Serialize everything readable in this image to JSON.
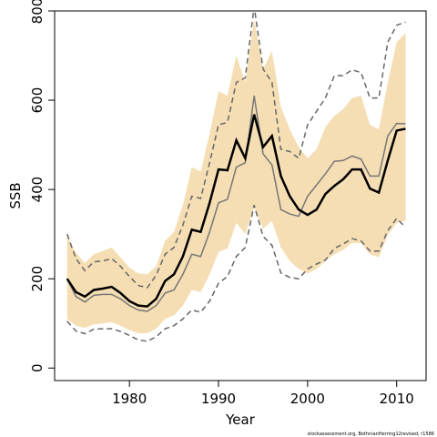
{
  "chart_data": {
    "type": "line",
    "xlabel": "Year",
    "ylabel": "SSB",
    "footnote": "stockassessment.org, BothnianHerring12revised, r1586",
    "x": [
      1973,
      1974,
      1975,
      1976,
      1977,
      1978,
      1979,
      1980,
      1981,
      1982,
      1983,
      1984,
      1985,
      1986,
      1987,
      1988,
      1989,
      1990,
      1991,
      1992,
      1993,
      1994,
      1995,
      1996,
      1997,
      1998,
      1999,
      2000,
      2001,
      2002,
      2003,
      2004,
      2005,
      2006,
      2007,
      2008,
      2009,
      2010,
      2011
    ],
    "band": {
      "color": "#f5deb3",
      "upper": [
        295,
        258,
        235,
        255,
        262,
        270,
        248,
        225,
        212,
        210,
        228,
        285,
        305,
        365,
        450,
        440,
        525,
        620,
        610,
        700,
        640,
        780,
        670,
        710,
        585,
        535,
        495,
        470,
        490,
        540,
        565,
        580,
        605,
        610,
        545,
        535,
        640,
        730,
        750
      ],
      "lower": [
        110,
        95,
        90,
        98,
        100,
        103,
        95,
        85,
        78,
        78,
        88,
        110,
        118,
        140,
        175,
        170,
        210,
        260,
        268,
        325,
        300,
        360,
        312,
        330,
        270,
        240,
        222,
        212,
        222,
        240,
        255,
        265,
        280,
        280,
        255,
        248,
        298,
        325,
        330
      ]
    },
    "series": [
      {
        "color": "#000000",
        "width": 2.5,
        "dashed": false,
        "values": [
          200,
          170,
          160,
          175,
          178,
          182,
          168,
          150,
          140,
          138,
          155,
          195,
          210,
          250,
          310,
          305,
          370,
          445,
          443,
          510,
          470,
          568,
          495,
          520,
          430,
          385,
          355,
          343,
          355,
          390,
          408,
          423,
          445,
          445,
          402,
          393,
          465,
          532,
          536
        ]
      },
      {
        "color": "#777777",
        "width": 1.5,
        "dashed": false,
        "values": [
          200,
          160,
          148,
          163,
          165,
          165,
          155,
          140,
          130,
          127,
          140,
          168,
          175,
          210,
          255,
          250,
          305,
          370,
          378,
          450,
          460,
          610,
          480,
          455,
          355,
          345,
          340,
          385,
          410,
          435,
          463,
          465,
          475,
          468,
          430,
          430,
          520,
          548,
          547
        ]
      },
      {
        "color": "#666666",
        "width": 1.5,
        "dashed": true,
        "values": [
          300,
          245,
          218,
          238,
          240,
          245,
          228,
          205,
          185,
          180,
          208,
          255,
          270,
          320,
          385,
          380,
          460,
          545,
          550,
          640,
          650,
          810,
          670,
          640,
          490,
          485,
          470,
          545,
          575,
          605,
          655,
          655,
          668,
          662,
          605,
          605,
          730,
          768,
          775
        ]
      },
      {
        "color": "#666666",
        "width": 1.5,
        "dashed": true,
        "values": [
          105,
          83,
          77,
          87,
          88,
          88,
          82,
          73,
          63,
          60,
          70,
          88,
          95,
          110,
          130,
          125,
          150,
          190,
          205,
          250,
          270,
          365,
          295,
          275,
          213,
          203,
          200,
          222,
          233,
          242,
          268,
          278,
          290,
          285,
          262,
          262,
          308,
          335,
          315
        ]
      }
    ],
    "xlim": [
      1971.6,
      2013.3
    ],
    "ylim": [
      -28,
      800
    ],
    "xticks": [
      1980,
      1990,
      2000,
      2010
    ],
    "yticks": [
      0,
      200,
      400,
      600,
      800
    ]
  }
}
